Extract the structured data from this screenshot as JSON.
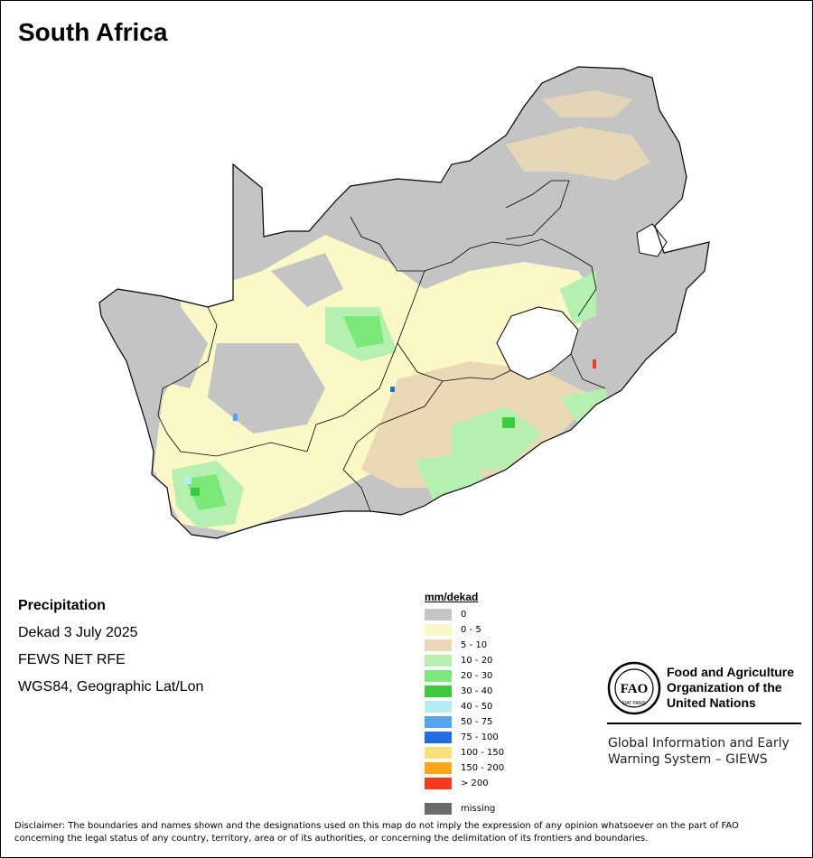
{
  "title": "South Africa",
  "meta": {
    "variable": "Precipitation",
    "period": "Dekad 3 July 2025",
    "source": "FEWS NET RFE",
    "projection": "WGS84, Geographic Lat/Lon"
  },
  "legend": {
    "title": "mm/dekad",
    "classes": [
      {
        "label": "0",
        "color": "#c4c4c4"
      },
      {
        "label": "0 - 5",
        "color": "#fbf8c8"
      },
      {
        "label": "5 - 10",
        "color": "#ebd9b5"
      },
      {
        "label": "10 - 20",
        "color": "#b5f0b0"
      },
      {
        "label": "20 - 30",
        "color": "#7be87a"
      },
      {
        "label": "30 - 40",
        "color": "#3ccb3c"
      },
      {
        "label": "40 - 50",
        "color": "#b5edf5"
      },
      {
        "label": "50 - 75",
        "color": "#55a5ee"
      },
      {
        "label": "75 - 100",
        "color": "#1f6ee8"
      },
      {
        "label": "100 - 150",
        "color": "#fbe17a"
      },
      {
        "label": "150 - 200",
        "color": "#f9a619"
      },
      {
        "label": "> 200",
        "color": "#f53a1a"
      }
    ],
    "missing": {
      "label": "missing",
      "color": "#6a6a6a"
    }
  },
  "org": {
    "logo_text": "FAO",
    "logo_motto": "FIAT PANIS",
    "name_lines": [
      "Food and Agriculture",
      "Organization of the",
      "United Nations"
    ],
    "giews_lines": [
      "Global Information and Early",
      "Warning System – GIEWS"
    ]
  },
  "disclaimer_lines": [
    "Disclaimer: The boundaries and names shown and the designations used on this map do not imply the expression of any opinion whatsoever on the part of FAO",
    "concerning the legal status of any country, territory, area or of its authorities, or concerning the delimitation of its frontiers and boundaries."
  ]
}
